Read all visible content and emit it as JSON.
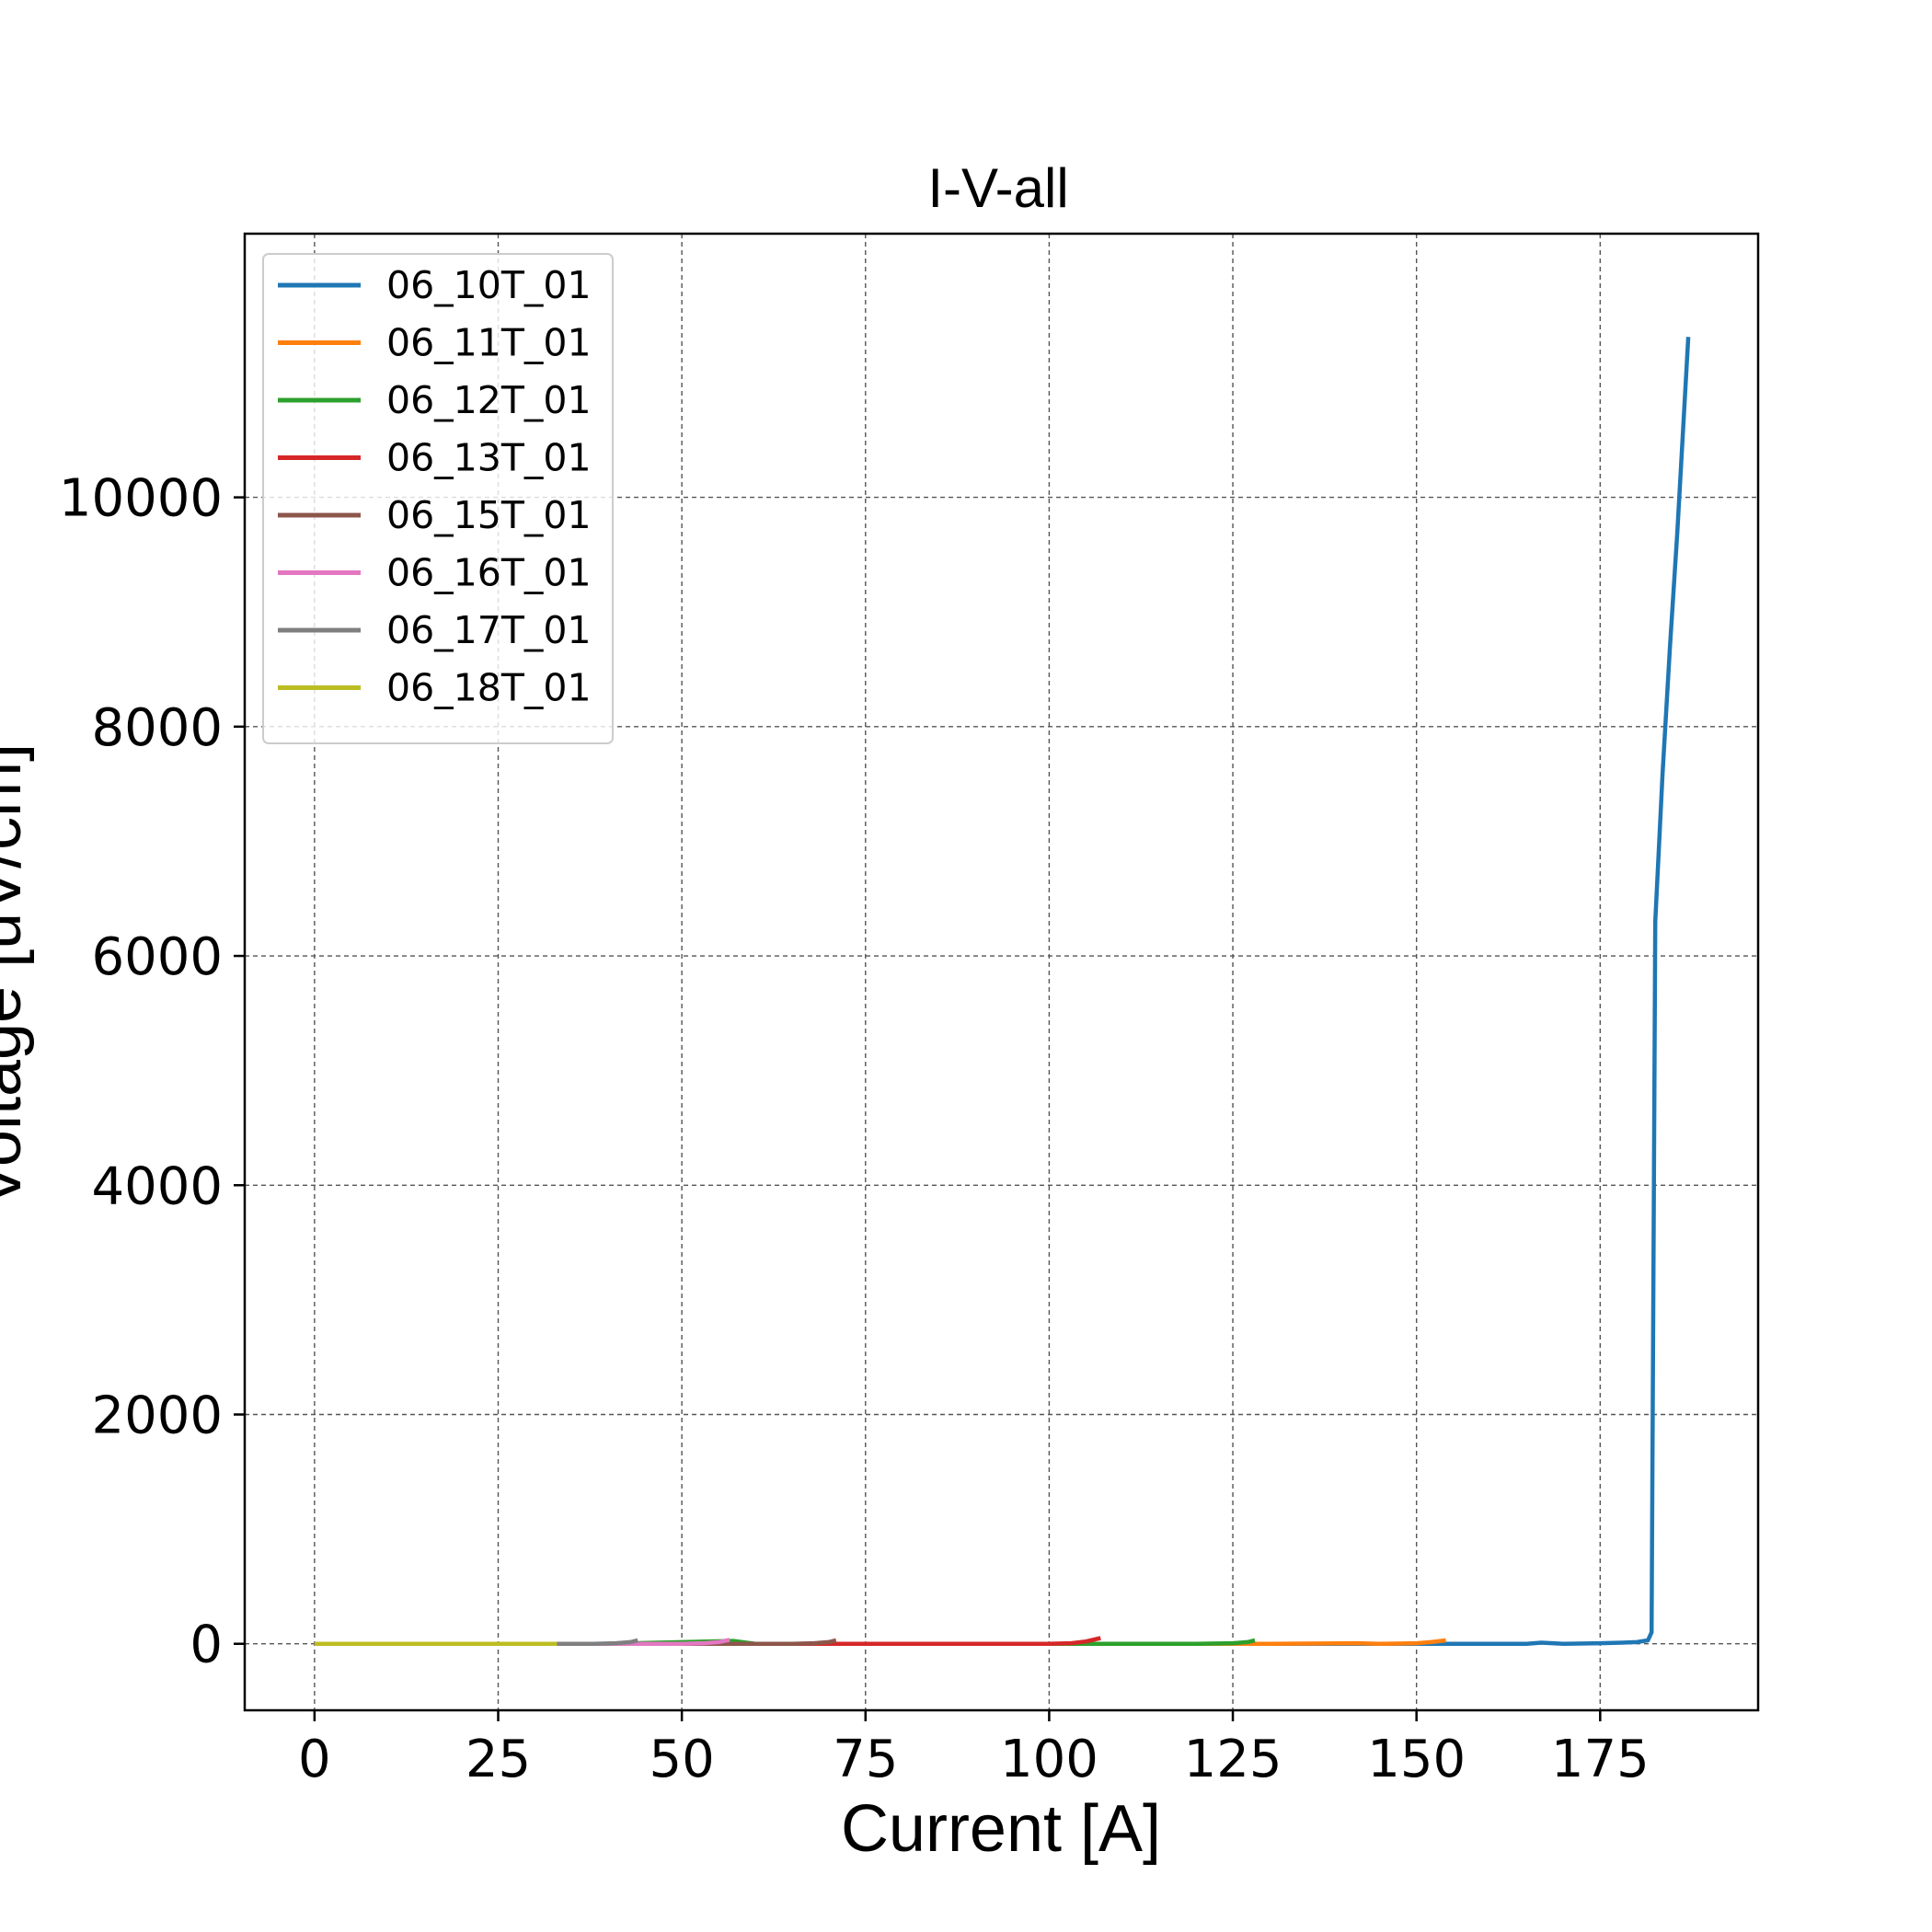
{
  "chart_data": {
    "type": "line",
    "title": "I-V-all",
    "xlabel": "Current [A]",
    "ylabel": "Voltage [uV/cm]",
    "xlim": [
      -9.5,
      196.5
    ],
    "ylim": [
      -580,
      12300
    ],
    "xticks": [
      0,
      25,
      50,
      75,
      100,
      125,
      150,
      175
    ],
    "yticks": [
      0,
      2000,
      4000,
      6000,
      8000,
      10000
    ],
    "grid": true,
    "legend_position": "top-left",
    "series": [
      {
        "name": "06_10T_01",
        "color": "#1f77b4",
        "x": [
          0,
          20,
          40,
          60,
          80,
          100,
          120,
          140,
          155,
          160,
          165,
          167,
          170,
          175,
          178,
          180,
          181.5,
          182,
          182.5,
          183.5,
          184.5,
          185.5,
          187
        ],
        "y": [
          0,
          0,
          0,
          0,
          0,
          0,
          0,
          0,
          0,
          0,
          0,
          10,
          0,
          5,
          10,
          15,
          30,
          100,
          6300,
          7600,
          8700,
          9700,
          11400
        ]
      },
      {
        "name": "06_11T_01",
        "color": "#ff7f0e",
        "x": [
          0,
          20,
          40,
          60,
          80,
          100,
          120,
          130,
          142,
          145,
          150,
          152,
          154
        ],
        "y": [
          0,
          0,
          0,
          0,
          0,
          0,
          0,
          0,
          5,
          0,
          5,
          15,
          30
        ]
      },
      {
        "name": "06_12T_01",
        "color": "#2ca02c",
        "x": [
          0,
          20,
          40,
          57,
          60,
          80,
          100,
          110,
          120,
          125,
          127,
          128
        ],
        "y": [
          0,
          0,
          0,
          25,
          0,
          0,
          0,
          0,
          0,
          5,
          15,
          30
        ]
      },
      {
        "name": "06_13T_01",
        "color": "#d62728",
        "x": [
          0,
          20,
          40,
          60,
          70,
          80,
          90,
          100,
          103,
          105,
          107
        ],
        "y": [
          0,
          0,
          0,
          0,
          0,
          0,
          0,
          0,
          5,
          20,
          50
        ]
      },
      {
        "name": "06_15T_01",
        "color": "#8c564b",
        "x": [
          0,
          20,
          40,
          55,
          60,
          65,
          68,
          70,
          71
        ],
        "y": [
          0,
          0,
          0,
          0,
          0,
          0,
          5,
          15,
          30
        ]
      },
      {
        "name": "06_16T_01",
        "color": "#e377c2",
        "x": [
          0,
          20,
          40,
          50,
          53,
          55,
          56.5
        ],
        "y": [
          0,
          0,
          0,
          0,
          5,
          15,
          35
        ]
      },
      {
        "name": "06_17T_01",
        "color": "#7f7f7f",
        "x": [
          0,
          20,
          33,
          38,
          41,
          43,
          44
        ],
        "y": [
          0,
          0,
          0,
          0,
          5,
          15,
          30
        ]
      },
      {
        "name": "06_18T_01",
        "color": "#bcbd22",
        "x": [
          0,
          10,
          20,
          30,
          33
        ],
        "y": [
          0,
          0,
          0,
          0,
          0
        ]
      }
    ]
  }
}
